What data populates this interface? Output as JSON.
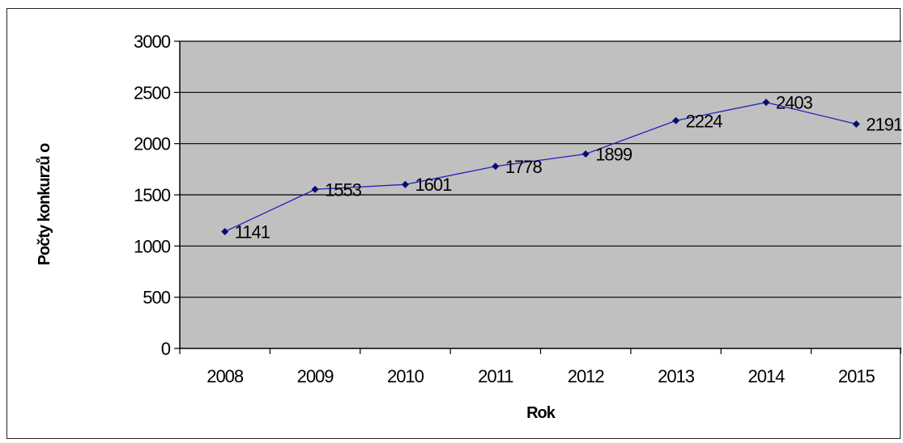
{
  "chart_data": {
    "type": "line",
    "xlabel": "Rok",
    "ylabel": "Počty konkurzů o",
    "categories": [
      "2008",
      "2009",
      "2010",
      "2011",
      "2012",
      "2013",
      "2014",
      "2015"
    ],
    "series": [
      {
        "values": [
          1141,
          1553,
          1601,
          1778,
          1899,
          2224,
          2403,
          2191
        ]
      }
    ],
    "data_labels": [
      "1141",
      "1553",
      "1601",
      "1778",
      "1899",
      "2224",
      "2403",
      "2191"
    ],
    "ylim": [
      0,
      3000
    ],
    "yticks": [
      "0",
      "500",
      "1000",
      "1500",
      "2000",
      "2500",
      "3000"
    ],
    "grid": true,
    "colors": {
      "plot_background": "#c0c0c0",
      "series_line": "#2020c0",
      "marker": "#0a0a6e",
      "gridline": "#000000"
    }
  }
}
